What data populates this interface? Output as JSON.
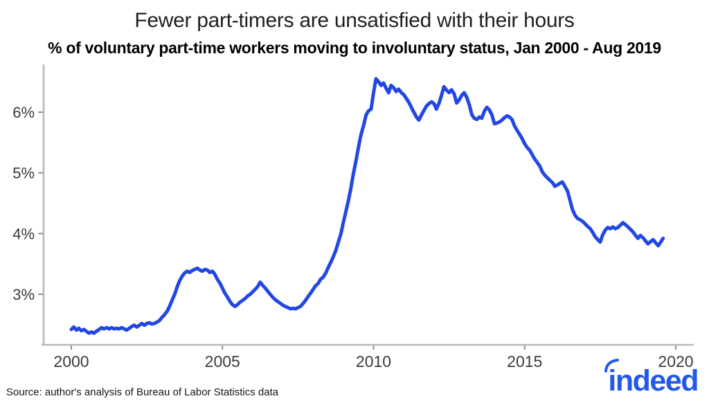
{
  "header": {
    "title": "Fewer part-timers are unsatisfied with their hours",
    "subtitle": "% of voluntary part-time workers moving to involuntary status, Jan 2000 - Aug 2019"
  },
  "footer": {
    "source_note": "Source: author's analysis of Bureau of Labor Statistics data",
    "logo_text": "indeed",
    "logo_color": "#2358e8"
  },
  "colors": {
    "line": "#2247e2",
    "axis_line": "#b9b9b9",
    "tick_mark": "#8f8f8f",
    "tick_label": "#3a3a3a"
  },
  "chart_data": {
    "type": "line",
    "title": "Fewer part-timers are unsatisfied with their hours",
    "subtitle": "% of voluntary part-time workers moving to involuntary status, Jan 2000 - Aug 2019",
    "source": "Source: author's analysis of Bureau of Labor Statistics data",
    "grid": false,
    "legend": "none",
    "line_color": "#2247e2",
    "x_axis": {
      "label": "",
      "ticks": [
        2000,
        2005,
        2010,
        2015,
        2020
      ],
      "tick_labels": [
        "2000",
        "2005",
        "2010",
        "2015",
        "2020"
      ],
      "range": [
        1999.1,
        2020.6
      ]
    },
    "y_axis": {
      "label": "",
      "ticks": [
        3,
        4,
        5,
        6
      ],
      "tick_labels": [
        "3%",
        "4%",
        "5%",
        "6%"
      ],
      "range": [
        2.3,
        6.65
      ]
    },
    "series": [
      {
        "name": "% of voluntary part-time workers moving to involuntary status",
        "points": [
          [
            2000.0,
            2.42
          ],
          [
            2000.08,
            2.46
          ],
          [
            2000.17,
            2.41
          ],
          [
            2000.25,
            2.44
          ],
          [
            2000.33,
            2.4
          ],
          [
            2000.42,
            2.42
          ],
          [
            2000.5,
            2.39
          ],
          [
            2000.58,
            2.36
          ],
          [
            2000.67,
            2.38
          ],
          [
            2000.75,
            2.36
          ],
          [
            2000.83,
            2.39
          ],
          [
            2000.92,
            2.42
          ],
          [
            2001.0,
            2.45
          ],
          [
            2001.08,
            2.43
          ],
          [
            2001.17,
            2.45
          ],
          [
            2001.25,
            2.43
          ],
          [
            2001.33,
            2.45
          ],
          [
            2001.42,
            2.43
          ],
          [
            2001.5,
            2.44
          ],
          [
            2001.58,
            2.43
          ],
          [
            2001.67,
            2.45
          ],
          [
            2001.75,
            2.43
          ],
          [
            2001.83,
            2.41
          ],
          [
            2001.92,
            2.44
          ],
          [
            2002.0,
            2.47
          ],
          [
            2002.08,
            2.49
          ],
          [
            2002.17,
            2.46
          ],
          [
            2002.25,
            2.49
          ],
          [
            2002.33,
            2.52
          ],
          [
            2002.42,
            2.49
          ],
          [
            2002.5,
            2.52
          ],
          [
            2002.58,
            2.53
          ],
          [
            2002.67,
            2.51
          ],
          [
            2002.75,
            2.52
          ],
          [
            2002.83,
            2.54
          ],
          [
            2002.92,
            2.57
          ],
          [
            2003.0,
            2.62
          ],
          [
            2003.08,
            2.66
          ],
          [
            2003.17,
            2.72
          ],
          [
            2003.25,
            2.8
          ],
          [
            2003.33,
            2.9
          ],
          [
            2003.42,
            3.0
          ],
          [
            2003.5,
            3.12
          ],
          [
            2003.58,
            3.22
          ],
          [
            2003.67,
            3.3
          ],
          [
            2003.75,
            3.35
          ],
          [
            2003.83,
            3.38
          ],
          [
            2003.92,
            3.36
          ],
          [
            2004.0,
            3.39
          ],
          [
            2004.08,
            3.41
          ],
          [
            2004.17,
            3.43
          ],
          [
            2004.25,
            3.4
          ],
          [
            2004.33,
            3.38
          ],
          [
            2004.42,
            3.41
          ],
          [
            2004.5,
            3.4
          ],
          [
            2004.58,
            3.36
          ],
          [
            2004.67,
            3.38
          ],
          [
            2004.75,
            3.33
          ],
          [
            2004.83,
            3.25
          ],
          [
            2004.92,
            3.18
          ],
          [
            2005.0,
            3.1
          ],
          [
            2005.08,
            3.02
          ],
          [
            2005.17,
            2.95
          ],
          [
            2005.25,
            2.88
          ],
          [
            2005.33,
            2.83
          ],
          [
            2005.42,
            2.8
          ],
          [
            2005.5,
            2.83
          ],
          [
            2005.58,
            2.87
          ],
          [
            2005.67,
            2.9
          ],
          [
            2005.75,
            2.93
          ],
          [
            2005.83,
            2.97
          ],
          [
            2005.92,
            3.0
          ],
          [
            2006.0,
            3.04
          ],
          [
            2006.08,
            3.08
          ],
          [
            2006.17,
            3.13
          ],
          [
            2006.25,
            3.2
          ],
          [
            2006.33,
            3.15
          ],
          [
            2006.42,
            3.1
          ],
          [
            2006.5,
            3.05
          ],
          [
            2006.58,
            3.0
          ],
          [
            2006.67,
            2.95
          ],
          [
            2006.75,
            2.91
          ],
          [
            2006.83,
            2.88
          ],
          [
            2006.92,
            2.85
          ],
          [
            2007.0,
            2.82
          ],
          [
            2007.08,
            2.8
          ],
          [
            2007.17,
            2.78
          ],
          [
            2007.25,
            2.76
          ],
          [
            2007.33,
            2.77
          ],
          [
            2007.42,
            2.76
          ],
          [
            2007.5,
            2.78
          ],
          [
            2007.58,
            2.8
          ],
          [
            2007.67,
            2.85
          ],
          [
            2007.75,
            2.9
          ],
          [
            2007.83,
            2.96
          ],
          [
            2007.92,
            3.02
          ],
          [
            2008.0,
            3.08
          ],
          [
            2008.08,
            3.14
          ],
          [
            2008.17,
            3.18
          ],
          [
            2008.25,
            3.25
          ],
          [
            2008.33,
            3.28
          ],
          [
            2008.42,
            3.35
          ],
          [
            2008.5,
            3.44
          ],
          [
            2008.58,
            3.52
          ],
          [
            2008.67,
            3.62
          ],
          [
            2008.75,
            3.72
          ],
          [
            2008.83,
            3.85
          ],
          [
            2008.92,
            4.0
          ],
          [
            2009.0,
            4.18
          ],
          [
            2009.08,
            4.35
          ],
          [
            2009.17,
            4.55
          ],
          [
            2009.25,
            4.75
          ],
          [
            2009.33,
            4.98
          ],
          [
            2009.42,
            5.2
          ],
          [
            2009.5,
            5.42
          ],
          [
            2009.58,
            5.62
          ],
          [
            2009.67,
            5.78
          ],
          [
            2009.75,
            5.95
          ],
          [
            2009.83,
            6.02
          ],
          [
            2009.92,
            6.05
          ],
          [
            2010.0,
            6.32
          ],
          [
            2010.08,
            6.55
          ],
          [
            2010.17,
            6.5
          ],
          [
            2010.25,
            6.44
          ],
          [
            2010.33,
            6.48
          ],
          [
            2010.42,
            6.39
          ],
          [
            2010.5,
            6.32
          ],
          [
            2010.58,
            6.44
          ],
          [
            2010.67,
            6.4
          ],
          [
            2010.75,
            6.34
          ],
          [
            2010.83,
            6.38
          ],
          [
            2010.92,
            6.32
          ],
          [
            2011.0,
            6.29
          ],
          [
            2011.08,
            6.23
          ],
          [
            2011.17,
            6.16
          ],
          [
            2011.25,
            6.08
          ],
          [
            2011.33,
            6.0
          ],
          [
            2011.42,
            5.92
          ],
          [
            2011.5,
            5.87
          ],
          [
            2011.58,
            5.95
          ],
          [
            2011.67,
            6.03
          ],
          [
            2011.75,
            6.1
          ],
          [
            2011.83,
            6.14
          ],
          [
            2011.92,
            6.17
          ],
          [
            2012.0,
            6.14
          ],
          [
            2012.08,
            6.05
          ],
          [
            2012.17,
            6.15
          ],
          [
            2012.25,
            6.28
          ],
          [
            2012.33,
            6.42
          ],
          [
            2012.42,
            6.36
          ],
          [
            2012.5,
            6.32
          ],
          [
            2012.58,
            6.37
          ],
          [
            2012.67,
            6.3
          ],
          [
            2012.75,
            6.15
          ],
          [
            2012.83,
            6.2
          ],
          [
            2012.92,
            6.28
          ],
          [
            2013.0,
            6.32
          ],
          [
            2013.08,
            6.25
          ],
          [
            2013.17,
            6.12
          ],
          [
            2013.25,
            5.96
          ],
          [
            2013.33,
            5.9
          ],
          [
            2013.42,
            5.88
          ],
          [
            2013.5,
            5.92
          ],
          [
            2013.58,
            5.9
          ],
          [
            2013.67,
            6.02
          ],
          [
            2013.75,
            6.08
          ],
          [
            2013.83,
            6.04
          ],
          [
            2013.92,
            5.95
          ],
          [
            2014.0,
            5.81
          ],
          [
            2014.08,
            5.82
          ],
          [
            2014.17,
            5.84
          ],
          [
            2014.25,
            5.87
          ],
          [
            2014.33,
            5.91
          ],
          [
            2014.42,
            5.94
          ],
          [
            2014.5,
            5.92
          ],
          [
            2014.58,
            5.88
          ],
          [
            2014.67,
            5.77
          ],
          [
            2014.75,
            5.7
          ],
          [
            2014.83,
            5.64
          ],
          [
            2014.92,
            5.56
          ],
          [
            2015.0,
            5.48
          ],
          [
            2015.08,
            5.42
          ],
          [
            2015.17,
            5.37
          ],
          [
            2015.25,
            5.3
          ],
          [
            2015.33,
            5.23
          ],
          [
            2015.42,
            5.17
          ],
          [
            2015.5,
            5.11
          ],
          [
            2015.58,
            5.02
          ],
          [
            2015.67,
            4.96
          ],
          [
            2015.75,
            4.92
          ],
          [
            2015.83,
            4.88
          ],
          [
            2015.92,
            4.84
          ],
          [
            2016.0,
            4.78
          ],
          [
            2016.08,
            4.8
          ],
          [
            2016.17,
            4.83
          ],
          [
            2016.25,
            4.85
          ],
          [
            2016.33,
            4.78
          ],
          [
            2016.42,
            4.7
          ],
          [
            2016.5,
            4.55
          ],
          [
            2016.58,
            4.4
          ],
          [
            2016.67,
            4.3
          ],
          [
            2016.75,
            4.25
          ],
          [
            2016.83,
            4.23
          ],
          [
            2016.92,
            4.2
          ],
          [
            2017.0,
            4.16
          ],
          [
            2017.08,
            4.12
          ],
          [
            2017.17,
            4.08
          ],
          [
            2017.25,
            4.02
          ],
          [
            2017.33,
            3.95
          ],
          [
            2017.42,
            3.9
          ],
          [
            2017.5,
            3.86
          ],
          [
            2017.58,
            3.98
          ],
          [
            2017.67,
            4.06
          ],
          [
            2017.75,
            4.1
          ],
          [
            2017.83,
            4.08
          ],
          [
            2017.92,
            4.11
          ],
          [
            2018.0,
            4.08
          ],
          [
            2018.08,
            4.1
          ],
          [
            2018.17,
            4.14
          ],
          [
            2018.25,
            4.18
          ],
          [
            2018.33,
            4.15
          ],
          [
            2018.42,
            4.11
          ],
          [
            2018.5,
            4.07
          ],
          [
            2018.58,
            4.03
          ],
          [
            2018.67,
            3.97
          ],
          [
            2018.75,
            3.92
          ],
          [
            2018.83,
            3.97
          ],
          [
            2018.92,
            3.93
          ],
          [
            2019.0,
            3.88
          ],
          [
            2019.08,
            3.83
          ],
          [
            2019.17,
            3.87
          ],
          [
            2019.25,
            3.9
          ],
          [
            2019.33,
            3.85
          ],
          [
            2019.42,
            3.8
          ],
          [
            2019.5,
            3.86
          ],
          [
            2019.58,
            3.92
          ]
        ]
      }
    ]
  }
}
